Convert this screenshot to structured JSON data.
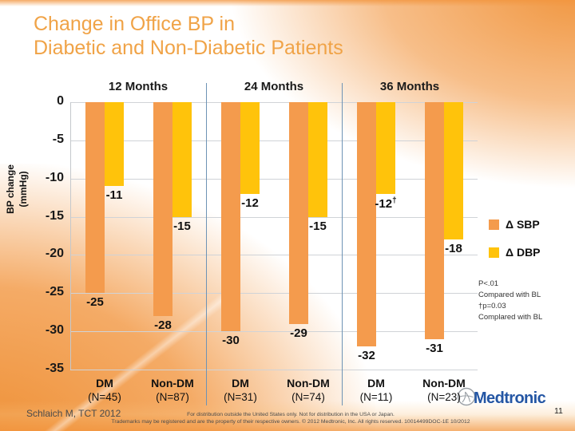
{
  "slide": {
    "title_line1": "Change in Office BP in",
    "title_line2": "Diabetic and Non-Diabetic Patients",
    "citation": "Schlaich M, TCT 2012",
    "footer_line1": "For distribution outside the United States only. Not for distribution in the USA or Japan.",
    "footer_line2": "Trademarks may be registered and are the property of their respective owners. © 2012 Medtronic, Inc. All rights reserved. 10014499DOC-1E 10/2012",
    "page_number": "11",
    "logo_text": "Medtronic",
    "colors": {
      "title_orange": "#F0A347",
      "accent_orange": "#F2963E",
      "medtronic_blue": "#2456A4"
    }
  },
  "chart_data": {
    "type": "bar",
    "title": "",
    "ylabel_line1": "BP change",
    "ylabel_line2": "(mmHg)",
    "ylim": [
      -35,
      0
    ],
    "yticks": [
      0,
      -5,
      -10,
      -15,
      -20,
      -25,
      -30,
      -35
    ],
    "grid": true,
    "legend_position": "right",
    "groups": [
      {
        "label": "12 Months",
        "bars": [
          {
            "category": "DM",
            "n_label": "(N=45)",
            "sbp": -25,
            "dbp": -11
          },
          {
            "category": "Non-DM",
            "n_label": "(N=87)",
            "sbp": -28,
            "dbp": -15
          }
        ]
      },
      {
        "label": "24 Months",
        "bars": [
          {
            "category": "DM",
            "n_label": "(N=31)",
            "sbp": -30,
            "dbp": -12
          },
          {
            "category": "Non-DM",
            "n_label": "(N=74)",
            "sbp": -29,
            "dbp": -15
          }
        ]
      },
      {
        "label": "36 Months",
        "bars": [
          {
            "category": "DM",
            "n_label": "(N=11)",
            "sbp": -32,
            "dbp": -12,
            "dbp_note": "†"
          },
          {
            "category": "Non-DM",
            "n_label": "(N=23)",
            "sbp": -31,
            "dbp": -18
          }
        ]
      }
    ],
    "legend": [
      {
        "label": "Δ SBP",
        "color": "#F49B4D"
      },
      {
        "label": "Δ DBP",
        "color": "#FFC30B"
      }
    ],
    "annotation_lines": [
      "P<.01",
      "Compared with BL",
      "†p=0.03",
      "Complared with BL"
    ],
    "colors": {
      "sbp": "#F49B4D",
      "dbp": "#FFC30B",
      "separator": "#6E93B5",
      "gridline": "#D0D3D7",
      "axis": "#C4C8CC"
    }
  }
}
